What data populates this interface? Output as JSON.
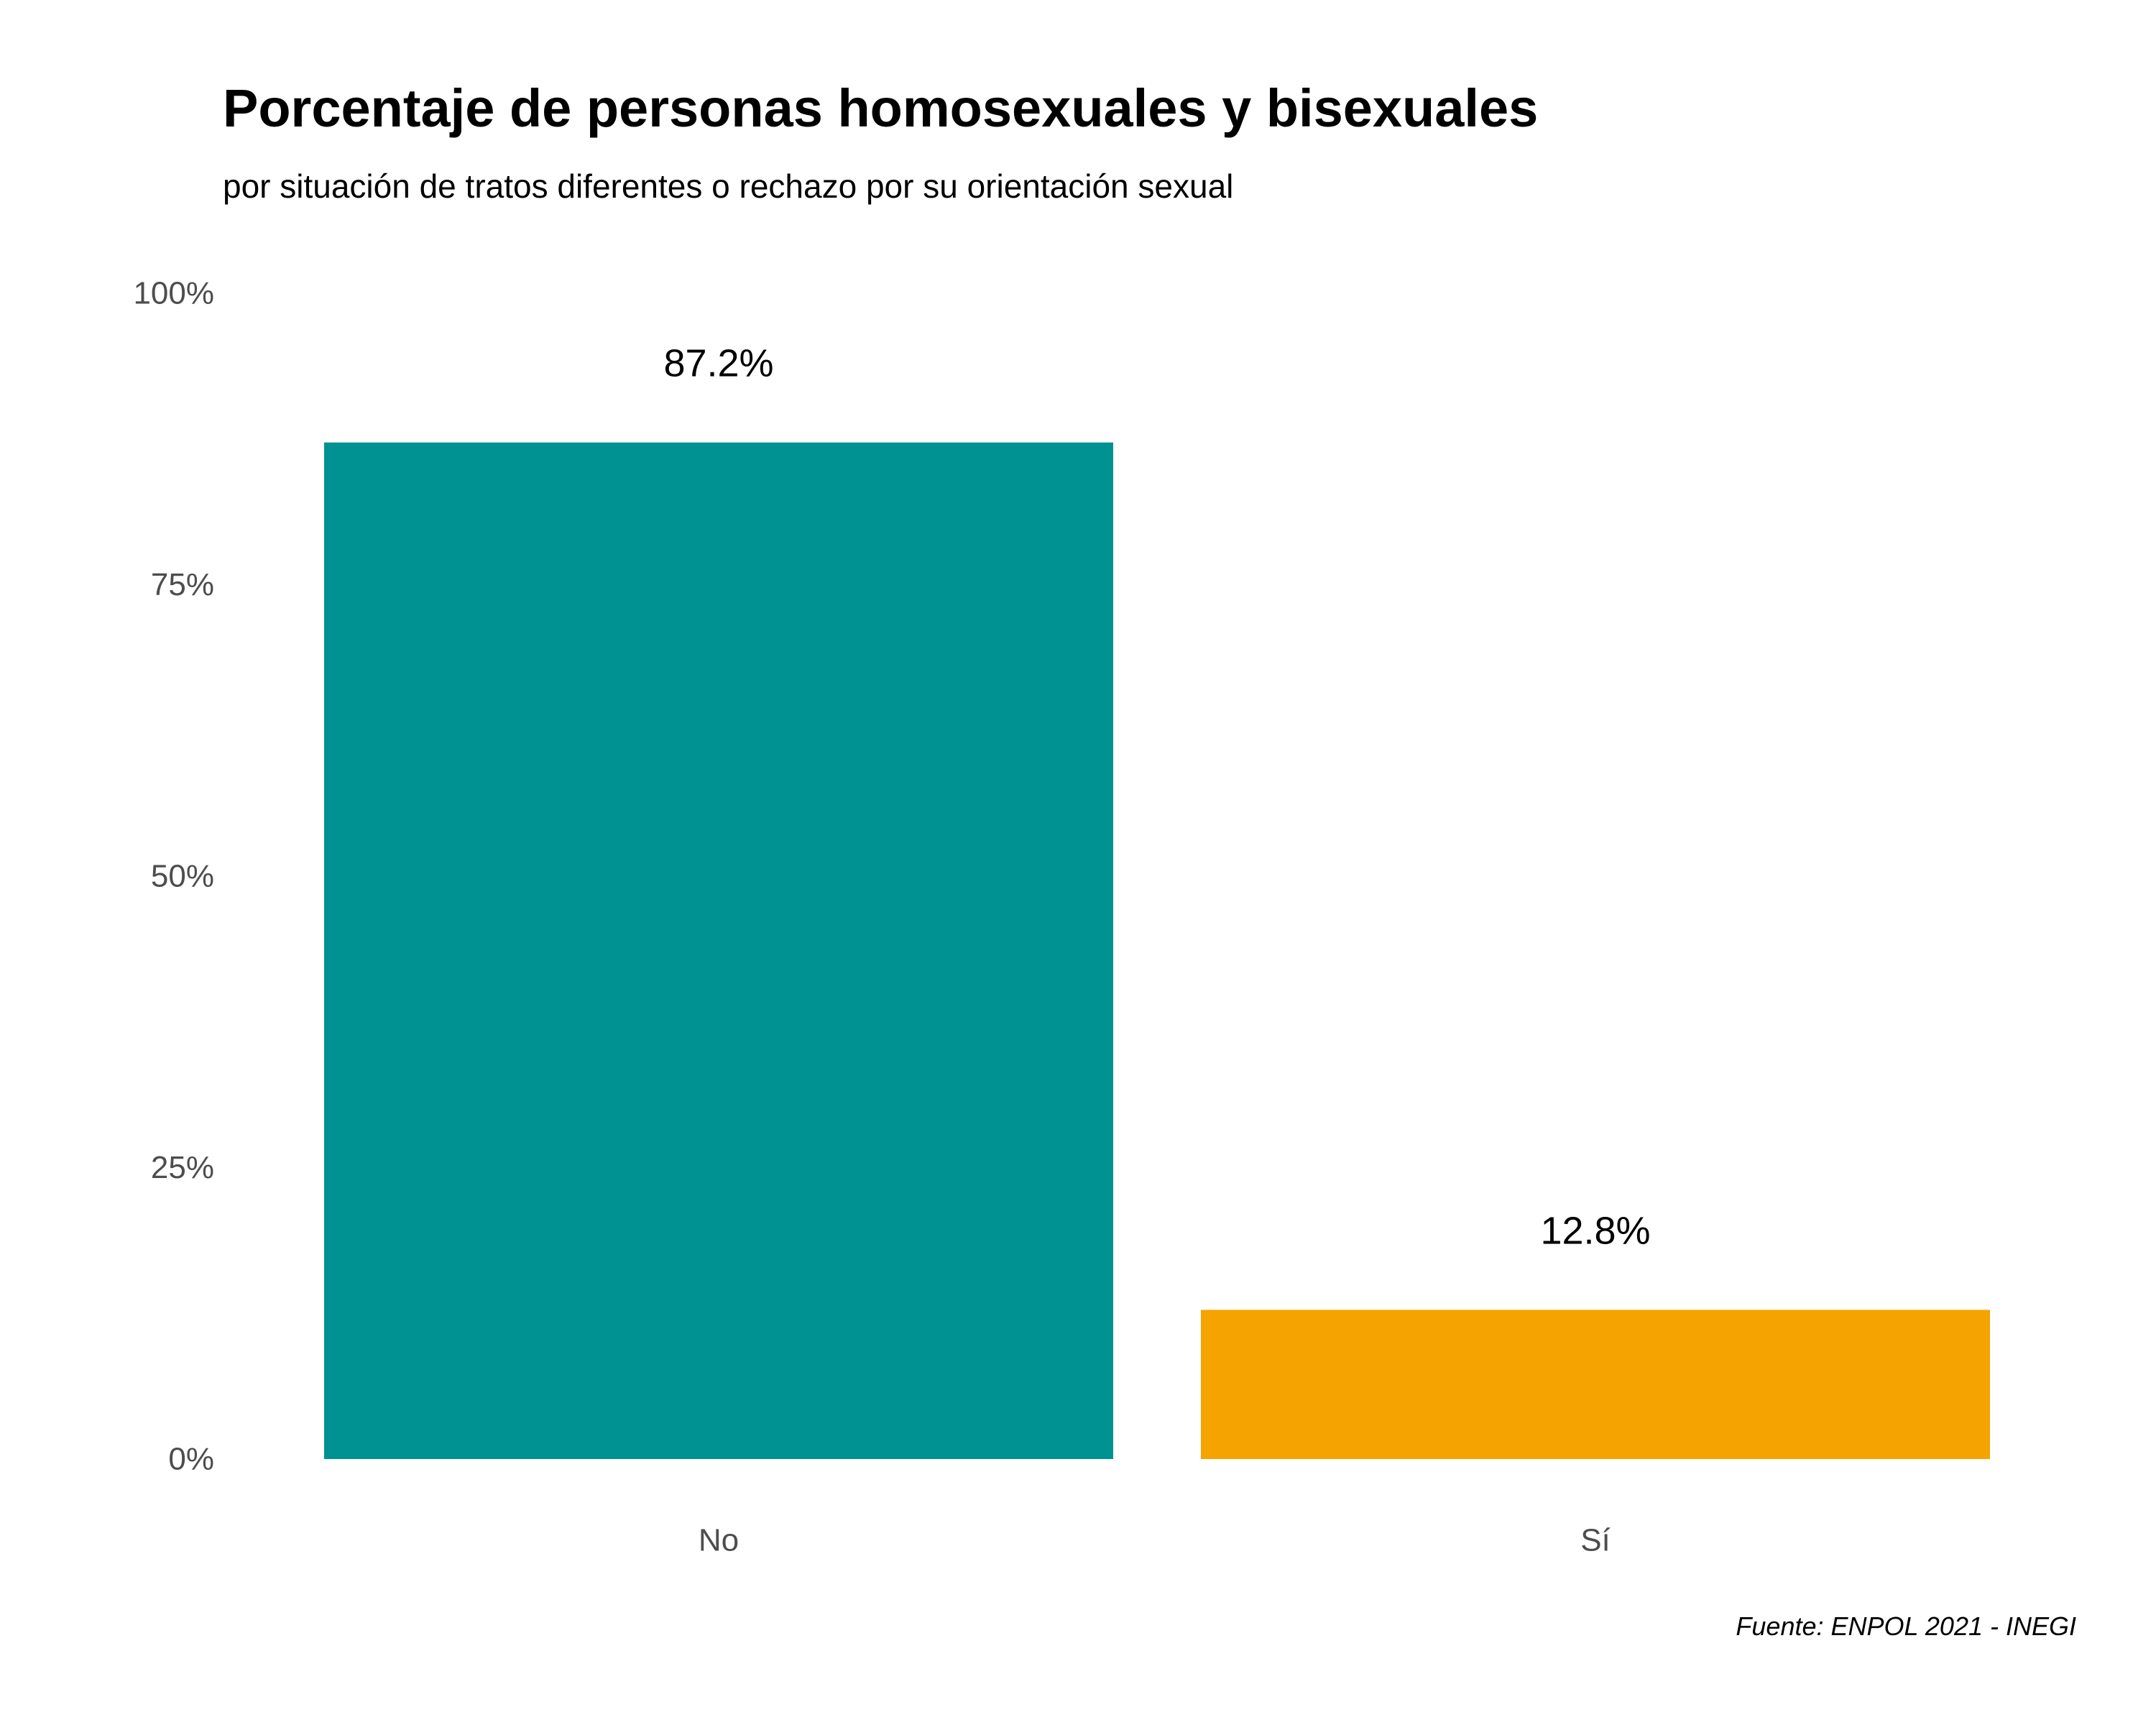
{
  "chart_data": {
    "type": "bar",
    "title": "Porcentaje de personas homosexuales y bisexuales",
    "subtitle": "por situación de tratos diferentes o rechazo por su orientación sexual",
    "caption": "Fuente: ENPOL 2021 - INEGI",
    "xlabel": "",
    "ylabel": "",
    "categories": [
      "No",
      "Sí"
    ],
    "values": [
      87.2,
      12.8
    ],
    "value_labels": [
      "87.2%",
      "12.8%"
    ],
    "colors": [
      "#009292",
      "#F5A300"
    ],
    "ylim": [
      0,
      100
    ],
    "yticks": [
      0,
      25,
      50,
      75,
      100
    ],
    "ytick_labels": [
      "0%",
      "25%",
      "50%",
      "75%",
      "100%"
    ],
    "grid": false,
    "legend": "none"
  }
}
